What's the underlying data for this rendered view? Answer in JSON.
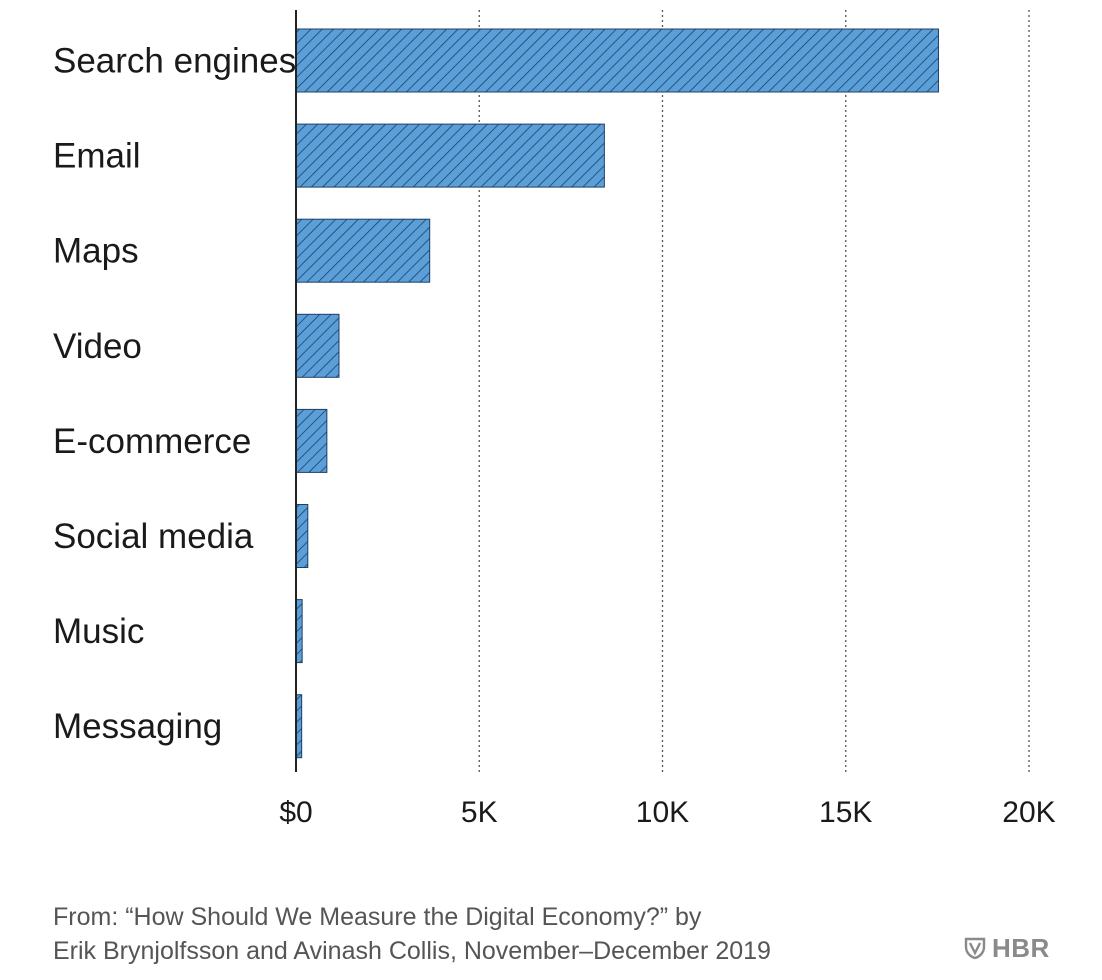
{
  "chart_data": {
    "type": "bar",
    "orientation": "horizontal",
    "categories": [
      "Search engines",
      "Email",
      "Maps",
      "Video",
      "E-commerce",
      "Social media",
      "Music",
      "Messaging"
    ],
    "values": [
      17530,
      8414,
      3648,
      1173,
      842,
      322,
      168,
      155
    ],
    "x_ticks": [
      {
        "value": 0,
        "label": "$0"
      },
      {
        "value": 5000,
        "label": "5K"
      },
      {
        "value": 10000,
        "label": "10K"
      },
      {
        "value": 15000,
        "label": "15K"
      },
      {
        "value": 20000,
        "label": "20K"
      }
    ],
    "xlim": [
      0,
      20000
    ],
    "grid": "vertical dotted",
    "bar_color": "#5b9fd8",
    "bar_pattern": "diagonal hatch",
    "hatch_color": "#1f3f66"
  },
  "source": {
    "line1": "From: “How Should We Measure the Digital Economy?” by",
    "line2": "Erik Brynjolfsson and Avinash Collis, November–December 2019"
  },
  "brand": {
    "text": "HBR",
    "icon": "shield-icon"
  }
}
